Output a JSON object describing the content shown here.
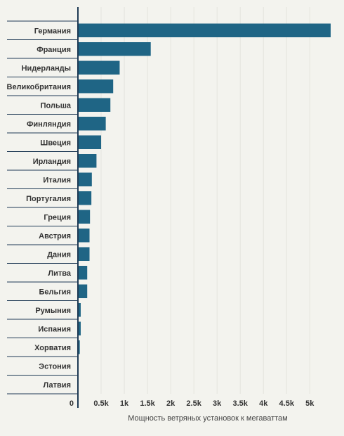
{
  "chart_data": {
    "type": "bar",
    "orientation": "horizontal",
    "categories": [
      "Германия",
      "Франция",
      "Нидерланды",
      "Великобритания",
      "Польша",
      "Финляндия",
      "Швеция",
      "Ирландия",
      "Италия",
      "Португалия",
      "Греция",
      "Австрия",
      "Дания",
      "Литва",
      "Бельгия",
      "Румыния",
      "Испания",
      "Хорватия",
      "Эстония",
      "Латвия"
    ],
    "values": [
      5450,
      1570,
      900,
      760,
      700,
      600,
      500,
      400,
      300,
      290,
      260,
      250,
      250,
      200,
      200,
      60,
      60,
      40,
      0,
      0
    ],
    "xlabel": "Мощность ветряных установок к мегаваттам",
    "xlim": [
      0,
      5450
    ],
    "x_ticks": [
      0,
      500,
      1000,
      1500,
      2000,
      2500,
      3000,
      3500,
      4000,
      4500,
      5000
    ],
    "x_tick_labels": [
      "0",
      "0.5k",
      "1k",
      "1.5k",
      "2k",
      "2.5k",
      "3k",
      "3.5k",
      "4k",
      "4.5k",
      "5k"
    ],
    "grid": "vertical",
    "colors": {
      "bar": "#1f6585",
      "background": "#f3f3ee",
      "grid": "#e4e4de",
      "axis": "#1f3a55"
    }
  }
}
